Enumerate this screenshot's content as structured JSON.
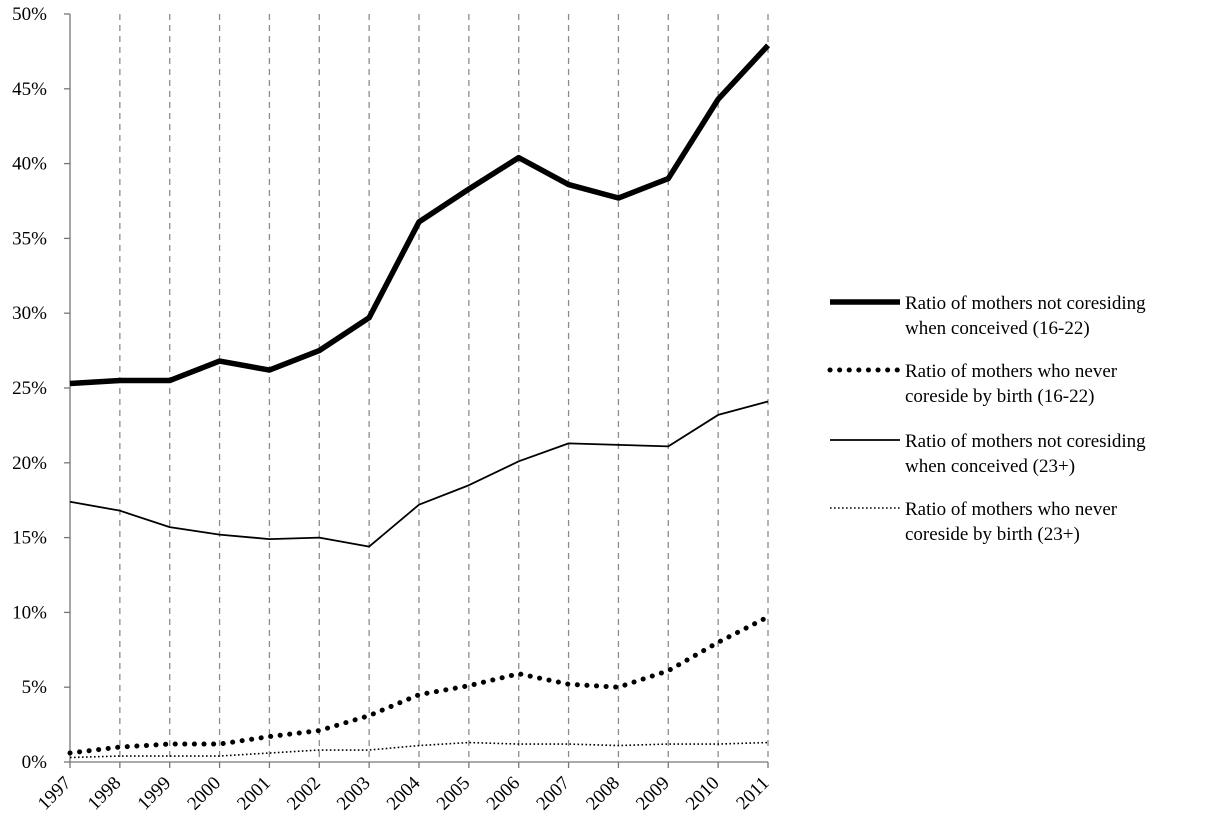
{
  "chart_data": {
    "type": "line",
    "title": "",
    "xlabel": "",
    "ylabel": "",
    "categories": [
      "1997",
      "1998",
      "1999",
      "2000",
      "2001",
      "2002",
      "2003",
      "2004",
      "2005",
      "2006",
      "2007",
      "2008",
      "2009",
      "2010",
      "2011"
    ],
    "y_tick_labels": [
      "0%",
      "5%",
      "10%",
      "15%",
      "20%",
      "25%",
      "30%",
      "35%",
      "40%",
      "45%",
      "50%"
    ],
    "ylim": [
      0,
      50
    ],
    "y_unit": "%",
    "grid": "vertical dashed gridlines at each category",
    "legend_position": "right",
    "series": [
      {
        "name_lines": [
          "Ratio of mothers not coresiding",
          "when conceived (16-22)"
        ],
        "style": "thick-solid",
        "values": [
          25.3,
          25.5,
          25.5,
          26.8,
          26.2,
          27.5,
          29.7,
          36.1,
          38.3,
          40.4,
          38.6,
          37.7,
          39.0,
          44.3,
          47.9
        ]
      },
      {
        "name_lines": [
          "Ratio of mothers who never",
          "coreside by birth (16-22)"
        ],
        "style": "thick-dotted",
        "values": [
          0.6,
          1.0,
          1.2,
          1.2,
          1.7,
          2.1,
          3.1,
          4.5,
          5.1,
          5.9,
          5.2,
          5.0,
          6.1,
          8.0,
          9.7
        ]
      },
      {
        "name_lines": [
          "Ratio of mothers not coresiding",
          "when conceived  (23+)"
        ],
        "style": "thin-solid",
        "values": [
          17.4,
          16.8,
          15.7,
          15.2,
          14.9,
          15.0,
          14.4,
          17.2,
          18.5,
          20.1,
          21.3,
          21.2,
          21.1,
          23.2,
          24.1
        ]
      },
      {
        "name_lines": [
          "Ratio of mothers who never",
          "coreside by birth (23+)"
        ],
        "style": "thin-dotted",
        "values": [
          0.3,
          0.4,
          0.4,
          0.4,
          0.6,
          0.8,
          0.8,
          1.1,
          1.3,
          1.2,
          1.2,
          1.1,
          1.2,
          1.2,
          1.3
        ]
      }
    ]
  }
}
